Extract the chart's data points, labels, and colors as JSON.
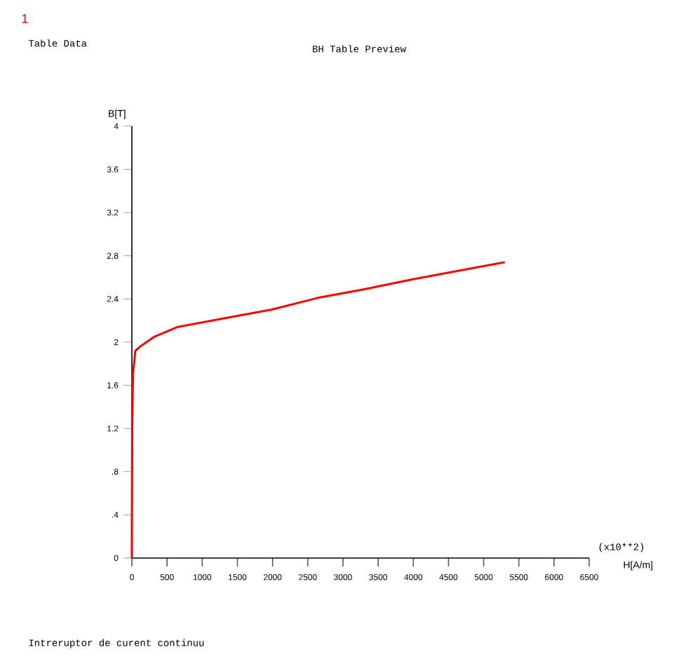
{
  "chart_data": {
    "type": "line",
    "title": "BH    Table Preview",
    "xlabel": "H[A/m]",
    "ylabel": "B[T]",
    "annotations": [
      "1",
      "Table Data",
      "(x10**2)",
      "Intreruptor de curent continuu"
    ],
    "series": [
      {
        "color": "#ff0000",
        "x": [
          0,
          0,
          5,
          15,
          50,
          120,
          320,
          650,
          980,
          1315,
          1980,
          2645,
          3310,
          3975,
          4640,
          5300
        ],
        "values": [
          0,
          0.15,
          1.2,
          1.7,
          1.92,
          1.96,
          2.05,
          2.14,
          2.18,
          2.22,
          2.3,
          2.41,
          2.49,
          2.58,
          2.66,
          2.74
        ]
      }
    ],
    "xlim": [
      0,
      6500
    ],
    "xticks": [
      0,
      500,
      1000,
      1500,
      2000,
      2500,
      3000,
      3500,
      4000,
      4500,
      5000,
      5500,
      6000,
      6500
    ],
    "ylim": [
      0,
      4
    ],
    "yticks": [
      0,
      {
        "value": 0.4,
        "label": ".4"
      },
      {
        "value": 0.8,
        "label": ".8"
      },
      1.2,
      1.6,
      2,
      2.4,
      2.8,
      3.2,
      3.6,
      4
    ],
    "grid": false,
    "marker": "none",
    "line_style": "solid"
  }
}
